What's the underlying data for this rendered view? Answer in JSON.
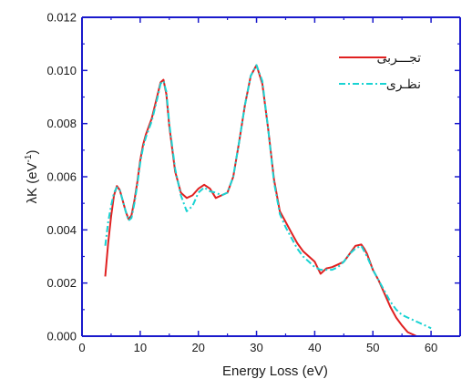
{
  "chart_data": {
    "type": "line",
    "xlabel": "Energy Loss (eV)",
    "ylabel_main": "λK (eV",
    "ylabel_sup": "-1",
    "ylabel_tail": ")",
    "xlim": [
      0,
      65
    ],
    "ylim": [
      0,
      0.012
    ],
    "x_ticks": [
      0,
      10,
      20,
      30,
      40,
      50,
      60
    ],
    "x_tick_labels": [
      "0",
      "10",
      "20",
      "30",
      "40",
      "50",
      "60"
    ],
    "y_ticks": [
      0,
      0.002,
      0.004,
      0.006,
      0.008,
      0.01,
      0.012
    ],
    "y_tick_labels": [
      "0.000",
      "0.002",
      "0.004",
      "0.006",
      "0.008",
      "0.010",
      "0.012"
    ],
    "grid": false,
    "legend_position": "top-right",
    "axis_color": "#1a1acc",
    "series": [
      {
        "name": "تجـــربی",
        "color": "#e02020",
        "dash": "solid",
        "x": [
          4,
          4.5,
          5,
          5.5,
          6,
          6.5,
          7,
          7.5,
          8,
          8.5,
          9,
          9.5,
          10,
          10.5,
          11,
          12,
          13,
          13.5,
          14,
          14.5,
          15,
          16,
          17,
          18,
          19,
          20,
          21,
          22,
          23,
          24,
          25,
          26,
          27,
          28,
          29,
          30,
          31,
          32,
          33,
          34,
          35,
          36,
          37,
          38,
          39,
          40,
          41,
          42,
          43,
          44,
          45,
          46,
          47,
          48,
          48.5,
          49,
          50,
          51,
          52,
          53,
          54,
          55,
          56,
          57,
          57.5
        ],
        "y": [
          0.00225,
          0.0035,
          0.0045,
          0.0053,
          0.00565,
          0.0055,
          0.0051,
          0.0047,
          0.0044,
          0.00455,
          0.0051,
          0.0058,
          0.0066,
          0.0072,
          0.0076,
          0.0082,
          0.0091,
          0.00955,
          0.00965,
          0.0091,
          0.0079,
          0.0062,
          0.0054,
          0.0052,
          0.0053,
          0.00555,
          0.0057,
          0.00555,
          0.0052,
          0.0053,
          0.0054,
          0.006,
          0.0073,
          0.0087,
          0.0098,
          0.0102,
          0.0095,
          0.0078,
          0.0059,
          0.0047,
          0.0043,
          0.0039,
          0.0035,
          0.0032,
          0.003,
          0.0028,
          0.00235,
          0.00255,
          0.0026,
          0.0027,
          0.0028,
          0.0031,
          0.0034,
          0.00345,
          0.0033,
          0.0031,
          0.0025,
          0.0021,
          0.0016,
          0.0011,
          0.0007,
          0.0004,
          0.00015,
          5e-05,
          0.0
        ]
      },
      {
        "name": "نظـری",
        "color": "#19d3d3",
        "dash": "dashdot",
        "x": [
          4,
          4.5,
          5,
          5.5,
          6,
          6.5,
          7,
          7.5,
          8,
          8.5,
          9,
          9.5,
          10,
          10.5,
          11,
          12,
          13,
          13.5,
          14,
          14.5,
          15,
          16,
          17,
          18,
          19,
          20,
          21,
          22,
          23,
          24,
          25,
          26,
          27,
          28,
          29,
          30,
          31,
          32,
          33,
          34,
          35,
          36,
          37,
          38,
          39,
          40,
          41,
          42,
          43,
          44,
          45,
          46,
          47,
          48,
          49,
          50,
          51,
          52,
          53,
          54,
          55,
          56,
          57,
          58,
          59,
          60
        ],
        "y": [
          0.0034,
          0.0043,
          0.0049,
          0.0054,
          0.0056,
          0.0055,
          0.0051,
          0.0047,
          0.00435,
          0.00445,
          0.005,
          0.0057,
          0.0065,
          0.0071,
          0.0075,
          0.0081,
          0.009,
          0.0095,
          0.0096,
          0.0092,
          0.008,
          0.0063,
          0.0053,
          0.0047,
          0.0049,
          0.0054,
          0.0056,
          0.00545,
          0.0054,
          0.0053,
          0.0054,
          0.006,
          0.0073,
          0.0087,
          0.0098,
          0.0102,
          0.0096,
          0.0078,
          0.0058,
          0.0046,
          0.0041,
          0.0037,
          0.0033,
          0.003,
          0.0028,
          0.0026,
          0.0025,
          0.0025,
          0.0025,
          0.0026,
          0.0028,
          0.0031,
          0.0033,
          0.0034,
          0.003,
          0.0025,
          0.0021,
          0.0017,
          0.0013,
          0.001,
          0.0008,
          0.0007,
          0.0006,
          0.0005,
          0.0004,
          0.0003
        ]
      }
    ]
  }
}
